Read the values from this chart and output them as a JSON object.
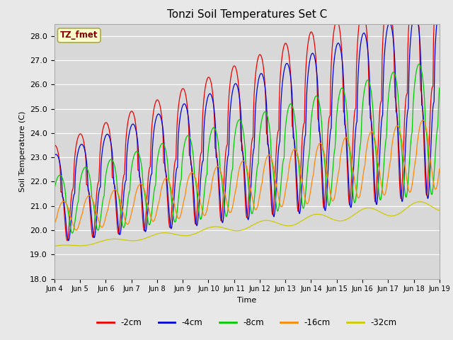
{
  "title": "Tonzi Soil Temperatures Set C",
  "xlabel": "Time",
  "ylabel": "Soil Temperature (C)",
  "ylim": [
    18.0,
    28.5
  ],
  "yticks": [
    18.0,
    19.0,
    20.0,
    21.0,
    22.0,
    23.0,
    24.0,
    25.0,
    26.0,
    27.0,
    28.0
  ],
  "bg_color": "#e8e8e8",
  "plot_bg": "#d8d8d8",
  "legend_labels": [
    "-2cm",
    "-4cm",
    "-8cm",
    "-16cm",
    "-32cm"
  ],
  "line_colors": [
    "#ee0000",
    "#0000dd",
    "#00cc00",
    "#ff8800",
    "#cccc00"
  ],
  "annotation_text": "TZ_fmet",
  "annotation_bg": "#ffffcc",
  "annotation_border": "#aaaa44",
  "annotation_text_color": "#880000",
  "x_tick_labels": [
    "Jun 4",
    "Jun 5",
    "Jun 6",
    "Jun 7",
    "Jun 8",
    "Jun 9",
    "Jun 10",
    "Jun 11",
    "Jun 12",
    "Jun 13",
    "Jun 14",
    "Jun 15",
    "Jun 16",
    "Jun 17",
    "Jun 18",
    "Jun 19"
  ],
  "n_days": 15,
  "pts_per_day": 48
}
